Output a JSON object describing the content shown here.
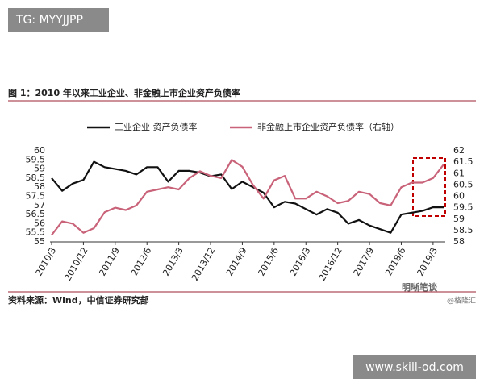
{
  "watermark": {
    "top_left": "TG: MYYJJPP",
    "bottom_right": "www.skill-od.com",
    "logo": "明晰笔谈",
    "logo_sub": "@格隆汇"
  },
  "chart_data": {
    "type": "line",
    "title": "图 1：2010 年以来工业企业、非金融上市企业资产负债率",
    "source": "资料来源：Wind，中信证券研究部",
    "categories": [
      "2010/3",
      null,
      null,
      "2010/12",
      null,
      null,
      "2011/9",
      null,
      null,
      "2012/6",
      null,
      null,
      "2013/3",
      null,
      null,
      "2013/12",
      null,
      null,
      "2014/9",
      null,
      null,
      "2015/6",
      null,
      null,
      "2016/3",
      null,
      null,
      "2016/12",
      null,
      null,
      "2017/9",
      null,
      null,
      "2018/6",
      null,
      null,
      "2019/3",
      null
    ],
    "series": [
      {
        "name": "工业企业 资产负债率",
        "color": "#111111",
        "axis": "y",
        "values": [
          58.5,
          57.8,
          58.2,
          58.4,
          59.4,
          59.1,
          59.0,
          58.9,
          58.7,
          59.1,
          59.1,
          58.3,
          58.9,
          58.9,
          58.8,
          58.6,
          58.7,
          57.9,
          58.3,
          58.0,
          57.7,
          56.9,
          57.2,
          57.1,
          56.8,
          56.5,
          56.8,
          56.6,
          56.0,
          56.2,
          55.9,
          55.7,
          55.5,
          56.5,
          56.6,
          56.7,
          56.9,
          56.9
        ]
      },
      {
        "name": "非金融上市企业资产负债率（右轴）",
        "color": "#c9637a",
        "axis": "y2",
        "values": [
          58.3,
          58.9,
          58.8,
          58.4,
          58.6,
          59.3,
          59.5,
          59.4,
          59.6,
          60.2,
          60.3,
          60.4,
          60.3,
          60.8,
          61.1,
          60.9,
          60.8,
          61.6,
          61.3,
          60.5,
          59.9,
          60.7,
          60.9,
          59.9,
          59.9,
          60.2,
          60.0,
          59.7,
          59.8,
          60.2,
          60.1,
          59.7,
          59.6,
          60.4,
          60.6,
          60.6,
          60.8,
          61.4
        ]
      }
    ],
    "ylim": [
      55,
      60
    ],
    "yticks": [
      55,
      55.5,
      56,
      56.5,
      57,
      57.5,
      58,
      58.5,
      59,
      59.5,
      60
    ],
    "y2lim": [
      58,
      62
    ],
    "y2ticks": [
      58,
      58.5,
      59,
      59.5,
      60,
      60.5,
      61,
      61.5,
      62
    ],
    "grid": false
  }
}
